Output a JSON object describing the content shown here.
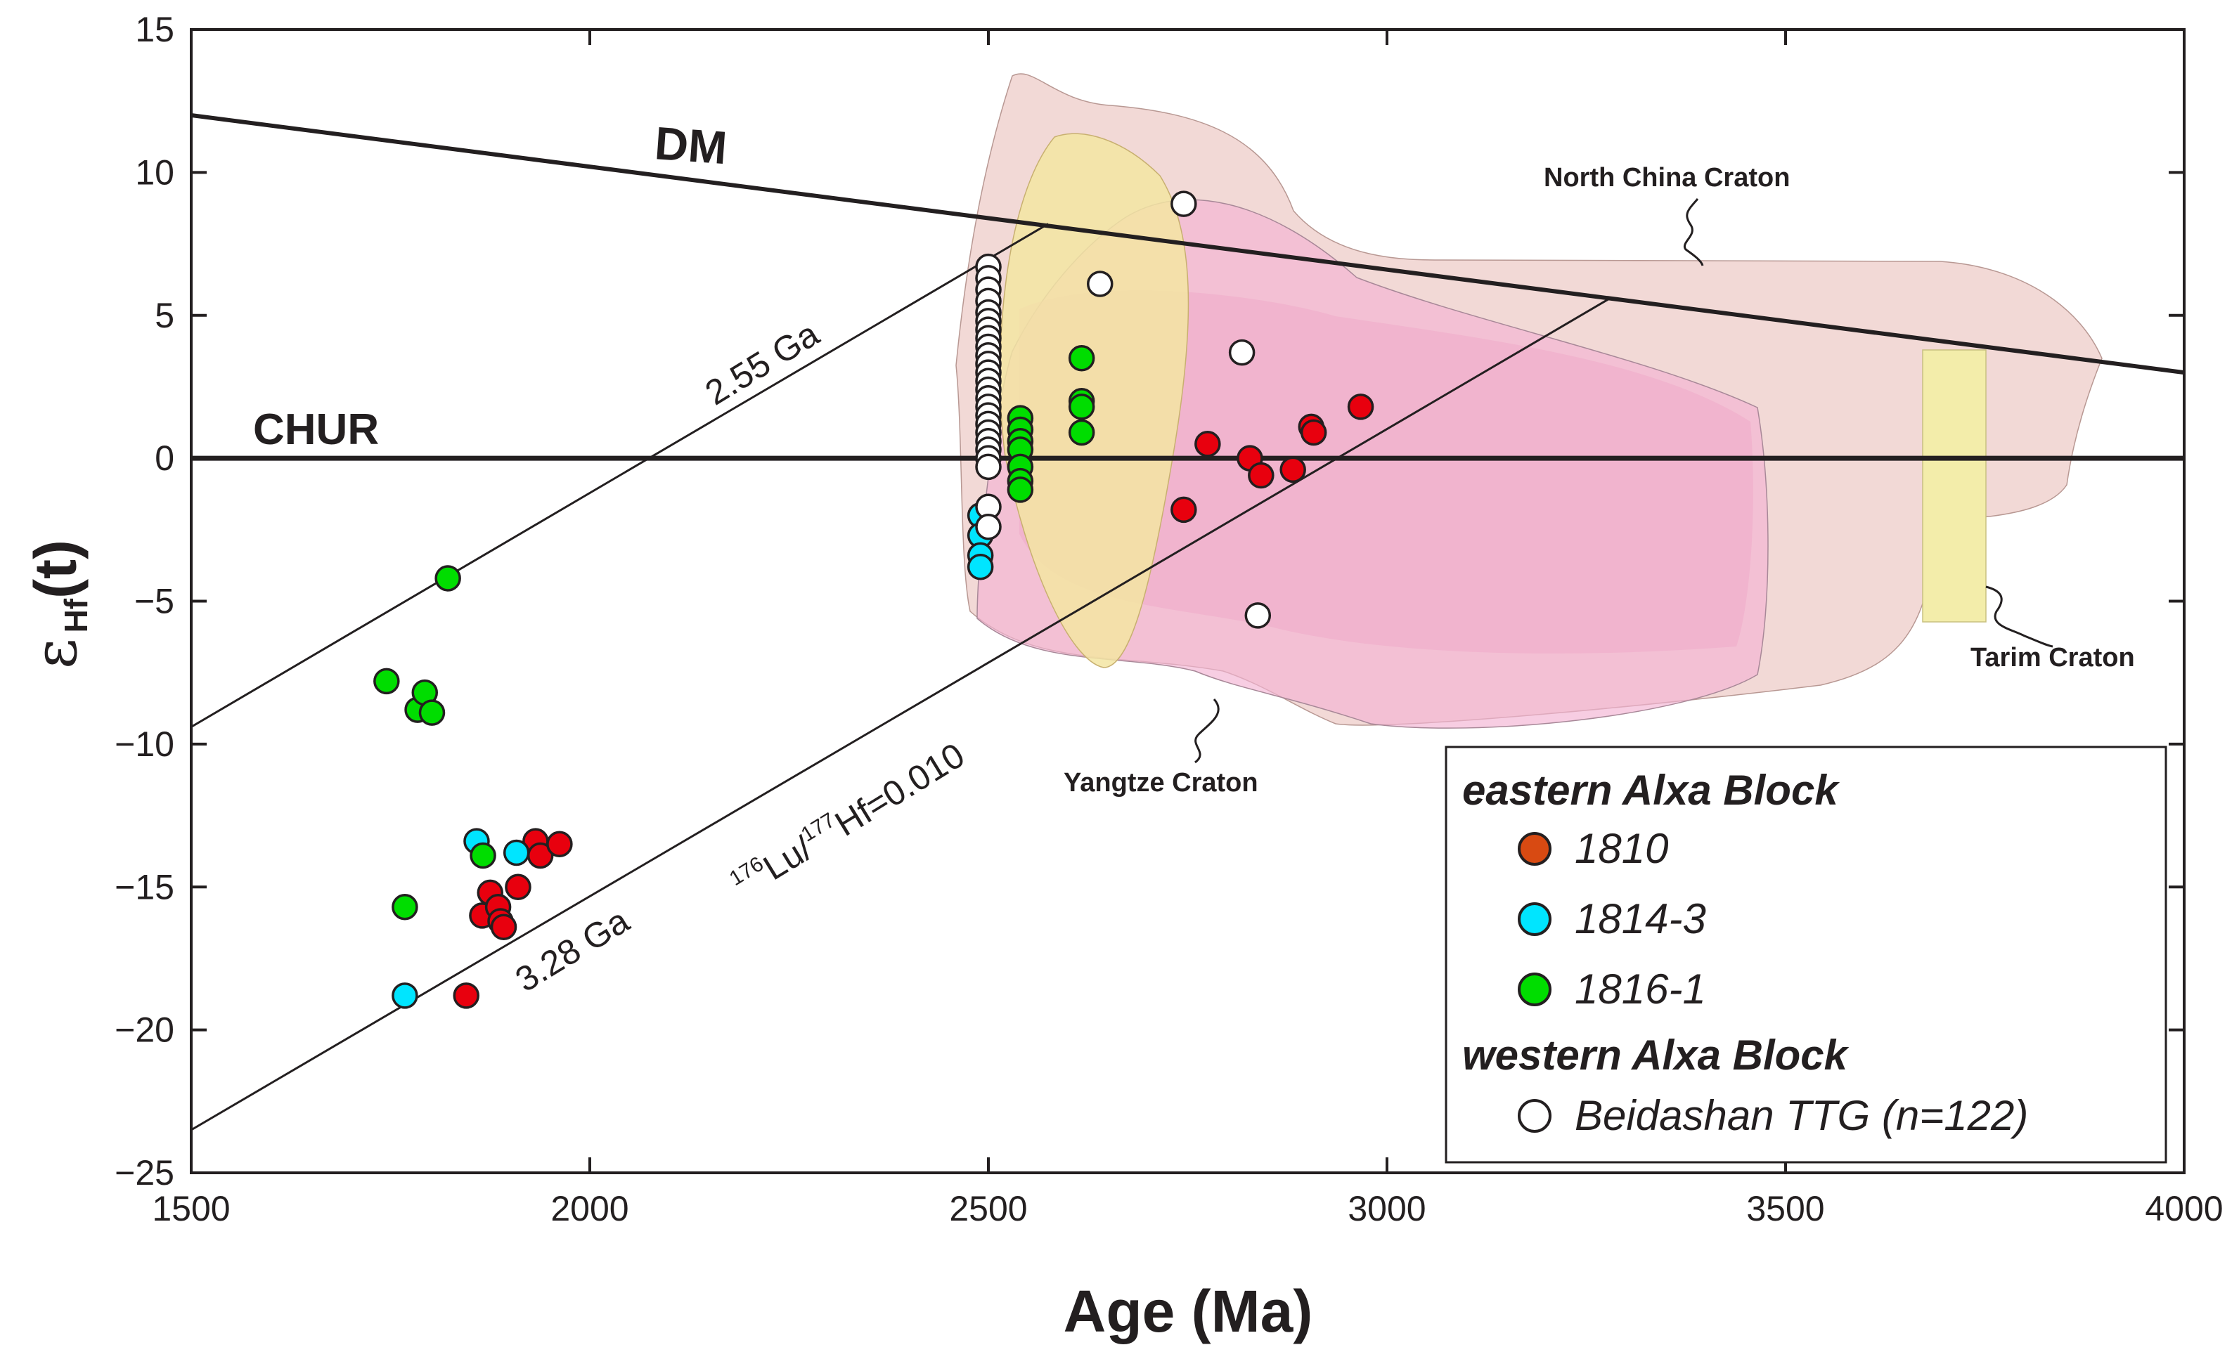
{
  "chart_data": {
    "type": "scatter",
    "xlabel": "Age (Ma)",
    "ylabel_symbol": "ε",
    "ylabel_sub": "Hf",
    "ylabel_tail": "(t)",
    "xlim": [
      1500,
      4000
    ],
    "ylim": [
      -25,
      15
    ],
    "xticks": [
      1500,
      2000,
      2500,
      3000,
      3500,
      4000
    ],
    "yticks": [
      15,
      10,
      5,
      0,
      -5,
      -10,
      -15,
      -20,
      -25
    ],
    "ytick_labels": [
      "15",
      "10",
      "5",
      "0",
      "−5",
      "−10",
      "−15",
      "−20",
      "−25"
    ],
    "reference_lines": [
      {
        "name": "DM",
        "label": "DM",
        "points": [
          [
            1500,
            12.0
          ],
          [
            4000,
            3.0
          ]
        ]
      },
      {
        "name": "CHUR",
        "label": "CHUR",
        "points": [
          [
            1500,
            0
          ],
          [
            4000,
            0
          ]
        ]
      }
    ],
    "evolution_lines": [
      {
        "label": "2.55 Ga",
        "points": [
          [
            1500,
            -9.4
          ],
          [
            2575,
            8.2
          ]
        ]
      },
      {
        "label": "3.28 Ga",
        "points": [
          [
            1500,
            -23.5
          ],
          [
            3280,
            5.6
          ]
        ]
      }
    ],
    "slope_label": {
      "sup1": "176",
      "t1": "Lu/",
      "sup2": "177",
      "t2": "Hf=0.010"
    },
    "fields": [
      {
        "name": "North China Craton",
        "label": "North China Craton",
        "color": "#ecc6c2"
      },
      {
        "name": "Yangtze Craton",
        "label": "Yangtze Craton",
        "color": "#f0a0c8"
      },
      {
        "name": "Tarim Craton",
        "label": "Tarim Craton",
        "color": "#f2eeaa"
      }
    ],
    "series": [
      {
        "name": "1810",
        "group": "eastern Alxa Block",
        "color": "#e8000e",
        "legend_color": "#d84a12",
        "points": [
          [
            1845,
            -18.8
          ],
          [
            1865,
            -16.0
          ],
          [
            1875,
            -15.2
          ],
          [
            1885,
            -15.7
          ],
          [
            1888,
            -16.2
          ],
          [
            1892,
            -16.4
          ],
          [
            1910,
            -15.0
          ],
          [
            1932,
            -13.4
          ],
          [
            1938,
            -13.9
          ],
          [
            1962,
            -13.5
          ],
          [
            2745,
            -1.8
          ],
          [
            2775,
            0.5
          ],
          [
            2828,
            0.0
          ],
          [
            2842,
            -0.6
          ],
          [
            2882,
            -0.4
          ],
          [
            2905,
            1.1
          ],
          [
            2908,
            0.9
          ],
          [
            2967,
            1.8
          ]
        ]
      },
      {
        "name": "1814-3",
        "group": "eastern Alxa Block",
        "color": "#00e5ff",
        "legend_color": "#00e5ff",
        "points": [
          [
            1768,
            -18.8
          ],
          [
            1858,
            -13.4
          ],
          [
            1908,
            -13.8
          ],
          [
            2490,
            -2.0
          ],
          [
            2490,
            -2.7
          ],
          [
            2490,
            -3.4
          ],
          [
            2490,
            -3.8
          ]
        ]
      },
      {
        "name": "1816-1",
        "group": "eastern Alxa Block",
        "color": "#00dd00",
        "legend_color": "#00dd00",
        "points": [
          [
            1745,
            -7.8
          ],
          [
            1768,
            -15.7
          ],
          [
            1784,
            -8.8
          ],
          [
            1793,
            -8.2
          ],
          [
            1802,
            -8.9
          ],
          [
            1822,
            -4.2
          ],
          [
            1866,
            -13.9
          ],
          [
            2540,
            1.4
          ],
          [
            2540,
            1.0
          ],
          [
            2540,
            0.6
          ],
          [
            2540,
            0.3
          ],
          [
            2540,
            -0.3
          ],
          [
            2540,
            -0.8
          ],
          [
            2540,
            -1.1
          ],
          [
            2617,
            3.5
          ],
          [
            2617,
            2.0
          ],
          [
            2617,
            1.8
          ],
          [
            2617,
            0.9
          ]
        ]
      },
      {
        "name": "Beidashan TTG (n=122)",
        "group": "western Alxa Block",
        "color": "#ffffff",
        "legend_color": "#ffffff",
        "points": [
          [
            2745,
            8.9
          ],
          [
            2640,
            6.1
          ],
          [
            2818,
            3.7
          ],
          [
            2838,
            -5.5
          ],
          [
            2500,
            6.7
          ],
          [
            2500,
            6.3
          ],
          [
            2500,
            5.9
          ],
          [
            2500,
            5.5
          ],
          [
            2500,
            5.1
          ],
          [
            2500,
            4.8
          ],
          [
            2500,
            4.5
          ],
          [
            2500,
            4.2
          ],
          [
            2500,
            3.9
          ],
          [
            2500,
            3.6
          ],
          [
            2500,
            3.3
          ],
          [
            2500,
            3.0
          ],
          [
            2500,
            2.7
          ],
          [
            2500,
            2.4
          ],
          [
            2500,
            2.1
          ],
          [
            2500,
            1.8
          ],
          [
            2500,
            1.5
          ],
          [
            2500,
            1.2
          ],
          [
            2500,
            0.9
          ],
          [
            2500,
            0.6
          ],
          [
            2500,
            0.3
          ],
          [
            2500,
            0.0
          ],
          [
            2500,
            -0.3
          ],
          [
            2500,
            -1.7
          ],
          [
            2500,
            -2.4
          ]
        ]
      }
    ],
    "legend": {
      "groups": [
        {
          "title": "eastern Alxa Block",
          "items": [
            "1810",
            "1814-3",
            "1816-1"
          ]
        },
        {
          "title": "western Alxa Block",
          "items": [
            "Beidashan TTG (n=122)"
          ]
        }
      ]
    }
  }
}
